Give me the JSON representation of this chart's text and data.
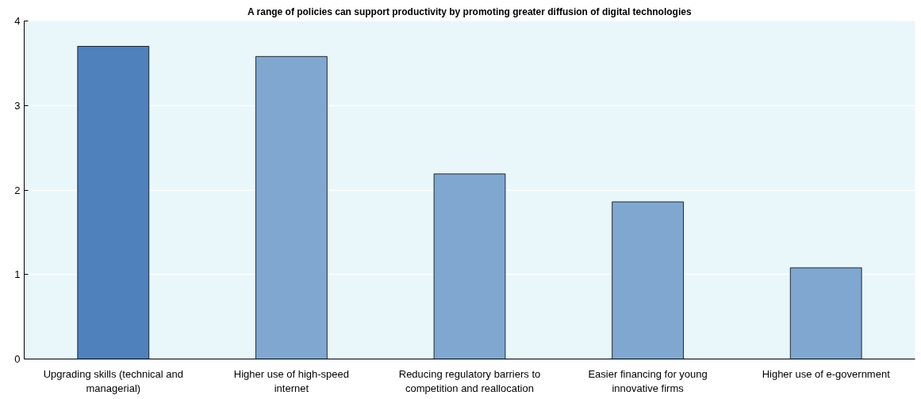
{
  "chart_data": {
    "type": "bar",
    "title": "A range of policies can support productivity by promoting greater diffusion of digital technologies",
    "categories": [
      "Upgrading skills (technical and managerial)",
      "Higher use of high-speed internet",
      "Reducing regulatory barriers to competition and reallocation",
      "Easier financing for young innovative firms",
      "Higher use of e-government"
    ],
    "values": [
      3.7,
      3.58,
      2.19,
      1.86,
      1.08
    ],
    "colors": [
      "#4f81bd",
      "#7fa7d0",
      "#7fa7d0",
      "#7fa7d0",
      "#7fa7d0"
    ],
    "ylim": [
      0,
      4
    ],
    "yticks": [
      0,
      1,
      2,
      3,
      4
    ],
    "grid": "y"
  }
}
